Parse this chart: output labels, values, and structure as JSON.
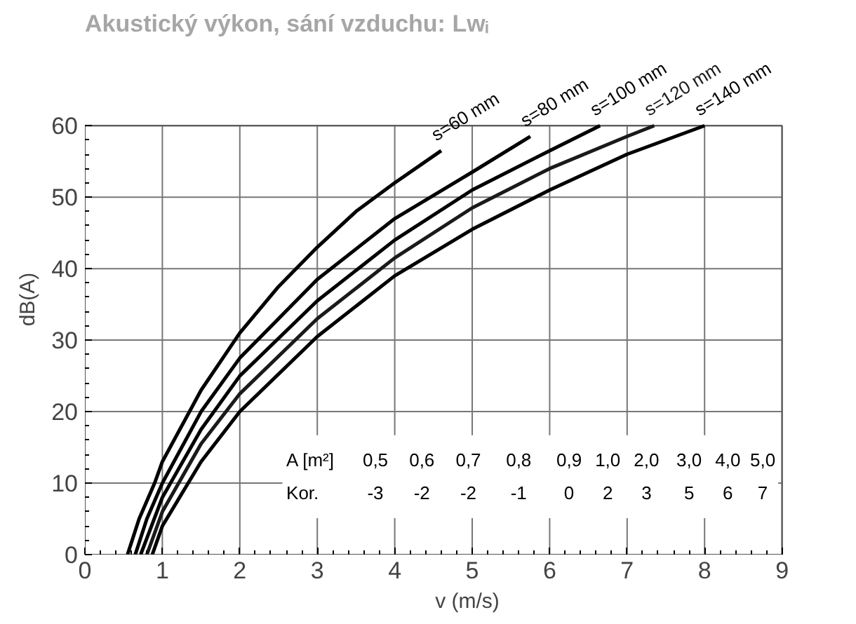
{
  "chart_data": {
    "type": "line",
    "title": "Akustický výkon, sání vzduchu: Lwᵢ",
    "xlabel": "v (m/s)",
    "ylabel": "dB(A)",
    "xlim": [
      0,
      9
    ],
    "ylim": [
      0,
      60
    ],
    "xticks": [
      0,
      1,
      2,
      3,
      4,
      5,
      6,
      7,
      8,
      9
    ],
    "yticks": [
      0,
      10,
      20,
      30,
      40,
      50,
      60
    ],
    "grid": true,
    "marker": "none",
    "line_style": "solid",
    "series": [
      {
        "name": "s=60 mm",
        "color": "#000000",
        "x": [
          0.55,
          0.7,
          0.9,
          1,
          1.5,
          2,
          2.5,
          3,
          3.5,
          4,
          4.6
        ],
        "values": [
          0,
          5,
          10,
          13,
          23,
          31,
          37.5,
          43,
          48,
          52,
          56.5
        ]
      },
      {
        "name": "s=80 mm",
        "color": "#000000",
        "x": [
          0.65,
          0.8,
          1,
          1.5,
          2,
          3,
          4,
          5,
          5.75
        ],
        "values": [
          0,
          5,
          10,
          20,
          27.5,
          38.5,
          47,
          53.5,
          58.5
        ]
      },
      {
        "name": "s=100 mm",
        "color": "#000000",
        "x": [
          0.72,
          1,
          1.5,
          2,
          3,
          4,
          5,
          6,
          6.65
        ],
        "values": [
          0,
          8,
          17.5,
          25,
          35.5,
          44,
          51,
          56.5,
          60
        ]
      },
      {
        "name": "s=120 mm",
        "color": "#1a1a1a",
        "x": [
          0.8,
          1,
          1.5,
          2,
          3,
          4,
          5,
          6,
          7,
          7.35
        ],
        "values": [
          0,
          6,
          15.5,
          22.5,
          33,
          41.5,
          48.5,
          54,
          58.5,
          60
        ]
      },
      {
        "name": "s=140 mm",
        "color": "#000000",
        "x": [
          0.87,
          1,
          1.5,
          2,
          3,
          4,
          5,
          6,
          7,
          8
        ],
        "values": [
          0,
          4,
          13,
          20,
          30.5,
          39,
          45.5,
          51,
          56,
          60
        ]
      }
    ],
    "annotations": [
      "A [m²] 0,5 0,6 0,7 0,8 0,9 1,0 2,0 3,0 4,0 5,0",
      "Kor. -3 -2 -2 -1 0 2 3 5 6 7"
    ]
  }
}
